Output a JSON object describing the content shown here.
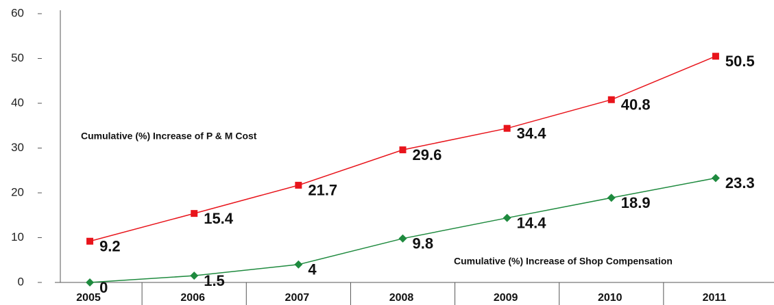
{
  "chart_data": {
    "type": "line",
    "categories": [
      "2005",
      "2006",
      "2007",
      "2008",
      "2009",
      "2010",
      "2011"
    ],
    "series": [
      {
        "name": "Cumulative (%) Increase of P & M Cost",
        "color": "#e8141b",
        "marker": "square",
        "values": [
          9.2,
          15.4,
          21.7,
          29.6,
          34.4,
          40.8,
          50.5
        ]
      },
      {
        "name": "Cumulative (%) Increase of Shop Compensation",
        "color": "#1e8a3e",
        "marker": "diamond",
        "values": [
          0,
          1.5,
          4,
          9.8,
          14.4,
          18.9,
          23.3
        ]
      }
    ],
    "ylim": [
      0,
      60
    ],
    "yticks": [
      0,
      10,
      20,
      30,
      40,
      50,
      60
    ],
    "grid": false
  }
}
